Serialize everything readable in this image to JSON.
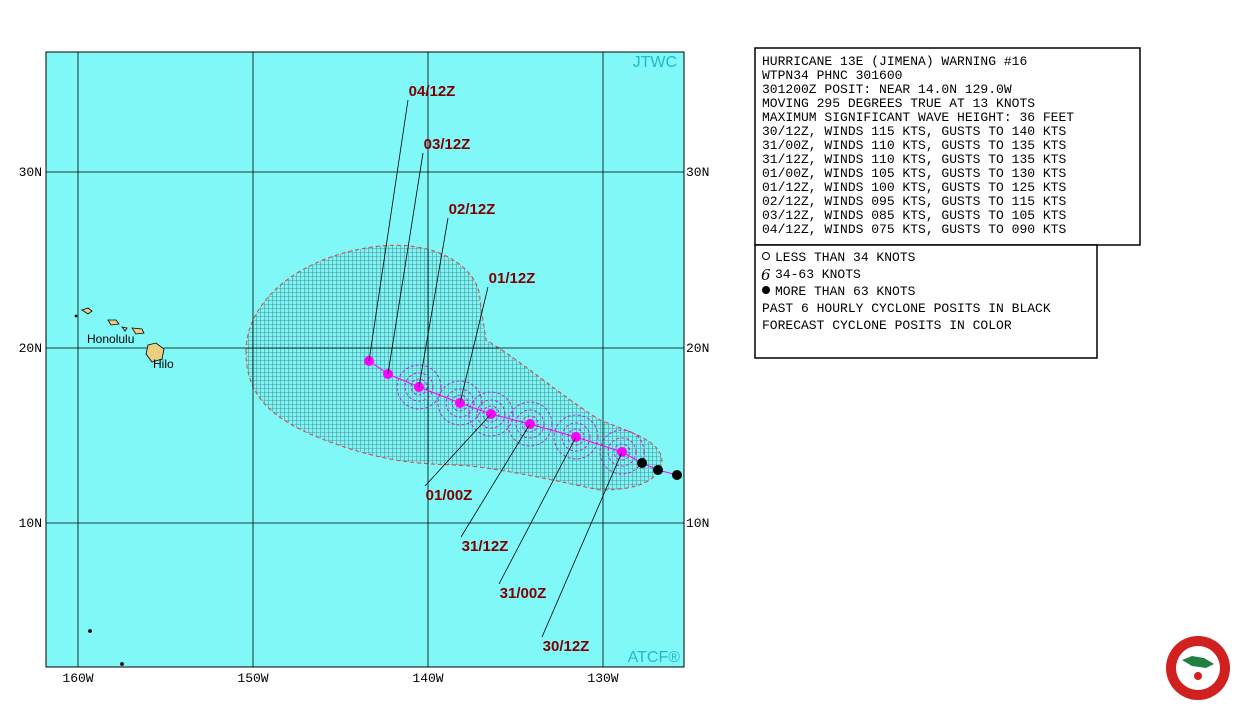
{
  "map": {
    "agency": "JTWC",
    "source": "ATCF®",
    "lat_labels": [
      "30N",
      "20N",
      "10N"
    ],
    "lon_labels": [
      "160W",
      "150W",
      "140W",
      "130W"
    ],
    "places": [
      "Honolulu",
      "Hilo"
    ],
    "forecast_labels": [
      "04/12Z",
      "03/12Z",
      "02/12Z",
      "01/12Z",
      "01/00Z",
      "31/12Z",
      "31/00Z",
      "30/12Z"
    ]
  },
  "warning": {
    "lines": [
      "HURRICANE 13E (JIMENA) WARNING #16",
      "WTPN34 PHNC 301600",
      "301200Z POSIT: NEAR 14.0N 129.0W",
      "MOVING 295 DEGREES TRUE AT 13 KNOTS",
      "MAXIMUM SIGNIFICANT WAVE HEIGHT: 36 FEET",
      "30/12Z, WINDS 115 KTS, GUSTS TO 140 KTS",
      "31/00Z, WINDS 110 KTS, GUSTS TO 135 KTS",
      "31/12Z, WINDS 110 KTS, GUSTS TO 135 KTS",
      "01/00Z, WINDS 105 KTS, GUSTS TO 130 KTS",
      "01/12Z, WINDS 100 KTS, GUSTS TO 125 KTS",
      "02/12Z, WINDS 095 KTS, GUSTS TO 115 KTS",
      "03/12Z, WINDS 085 KTS, GUSTS TO 105 KTS",
      "04/12Z, WINDS 075 KTS, GUSTS TO 090 KTS"
    ]
  },
  "legend": {
    "lines": [
      "LESS THAN 34 KNOTS",
      "34-63 KNOTS",
      "MORE THAN 63 KNOTS",
      "PAST 6 HOURLY CYCLONE POSITS IN BLACK",
      "FORECAST CYCLONE POSITS IN COLOR"
    ]
  }
}
